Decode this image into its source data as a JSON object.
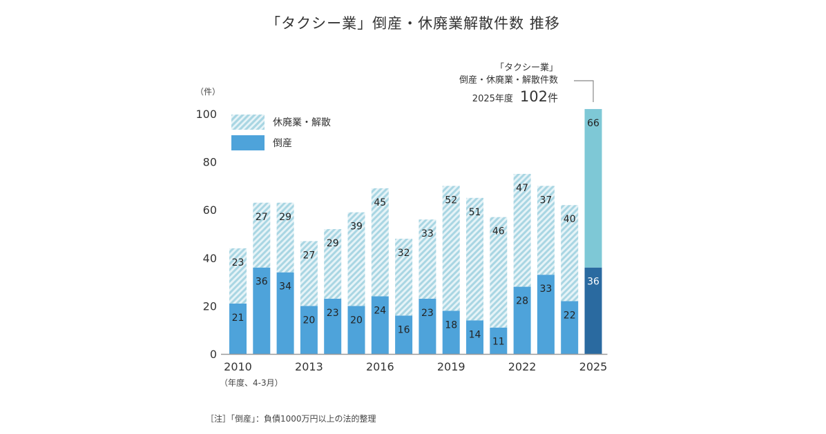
{
  "title": "「タクシー業」倒産・休廃業解散件数 推移",
  "unit_label": "（件）",
  "fiscal_note": "（年度、4-3月）",
  "footnote": "［注］「倒産」：負債1000万円以上の法的整理",
  "legend": {
    "hatched": "休廃業・解散",
    "solid": "倒産"
  },
  "callout": {
    "line1": "「タクシー業」",
    "line2": "倒産・休廃業・解散件数",
    "year": "2025年度",
    "value": "102",
    "value_unit": "件"
  },
  "colors": {
    "bankruptcy": "#4ea3da",
    "closure_hatch_dark": "#a9d6e3",
    "closure_hatch_light": "#e6f3f7",
    "highlight_bankruptcy": "#2a6aa0",
    "highlight_closure": "#7ec8d6",
    "axis": "#999999",
    "text": "#333333"
  },
  "chart_data": {
    "type": "bar",
    "stacked": true,
    "title": "「タクシー業」倒産・休廃業解散件数 推移",
    "xlabel": "（年度、4-3月）",
    "ylabel": "（件）",
    "ylim": [
      0,
      100
    ],
    "yticks": [
      0,
      20,
      40,
      60,
      80,
      100
    ],
    "categories": [
      "2010",
      "2011",
      "2012",
      "2013",
      "2014",
      "2015",
      "2016",
      "2017",
      "2018",
      "2019",
      "2020",
      "2021",
      "2022",
      "2023",
      "2024",
      "2025"
    ],
    "xtick_labels": {
      "0": "2010",
      "3": "2013",
      "6": "2016",
      "9": "2019",
      "12": "2022",
      "15": "2025"
    },
    "series": [
      {
        "name": "倒産",
        "values": [
          21,
          36,
          34,
          20,
          23,
          20,
          24,
          16,
          23,
          18,
          14,
          11,
          28,
          33,
          22,
          36
        ]
      },
      {
        "name": "休廃業・解散",
        "values": [
          23,
          27,
          29,
          27,
          29,
          39,
          45,
          32,
          33,
          52,
          51,
          46,
          47,
          37,
          40,
          66
        ]
      }
    ],
    "highlight_index": 15,
    "legend_position": "top-left",
    "grid": false
  }
}
